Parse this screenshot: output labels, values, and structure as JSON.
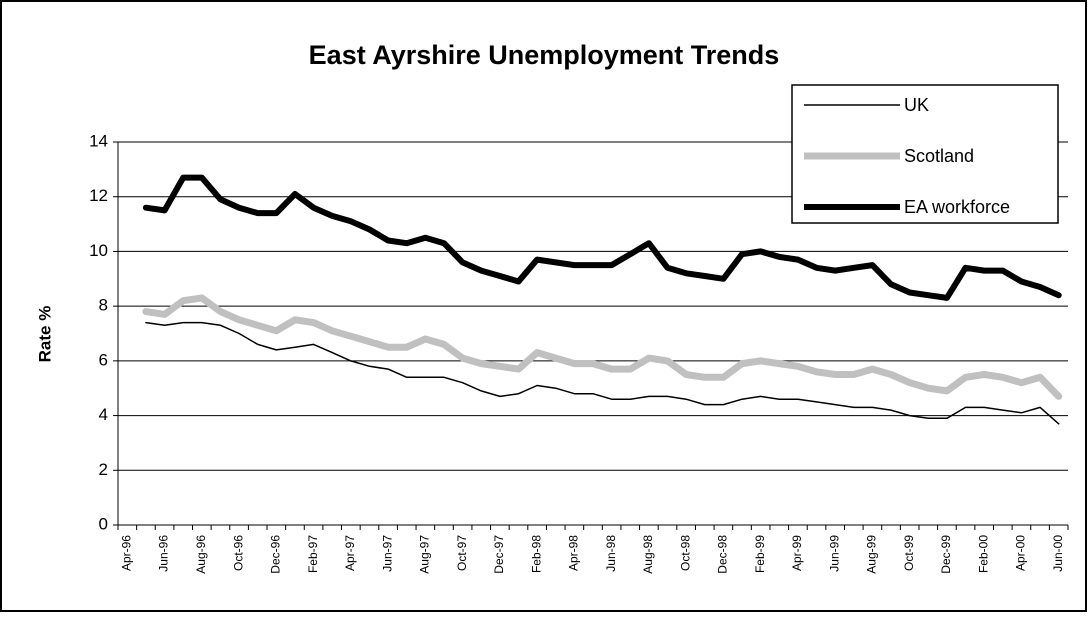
{
  "chart_data": {
    "type": "line",
    "title": "East Ayrshire Unemployment Trends",
    "y_label": "Rate %",
    "categories": [
      "Apr-96",
      null,
      "Jun-96",
      null,
      "Aug-96",
      null,
      "Oct-96",
      null,
      "Dec-96",
      null,
      "Feb-97",
      null,
      "Apr-97",
      null,
      "Jun-97",
      null,
      "Aug-97",
      null,
      "Oct-97",
      null,
      "Dec-97",
      null,
      "Feb-98",
      null,
      "Apr-98",
      null,
      "Jun-98",
      null,
      "Aug-98",
      null,
      "Oct-98",
      null,
      "Dec-98",
      null,
      "Feb-99",
      null,
      "Apr-99",
      null,
      "Jun-99",
      null,
      "Aug-99",
      null,
      "Oct-99",
      null,
      "Dec-99",
      null,
      "Feb-00",
      null,
      "Apr-00",
      null,
      "Jun-00"
    ],
    "series": [
      {
        "name": "UK",
        "color": "#000000",
        "line_width": 1.5,
        "values": [
          null,
          7.4,
          7.3,
          7.4,
          7.4,
          7.3,
          7.0,
          6.6,
          6.4,
          6.5,
          6.6,
          6.3,
          6.0,
          5.8,
          5.7,
          5.4,
          5.4,
          5.4,
          5.2,
          4.9,
          4.7,
          4.8,
          5.1,
          5.0,
          4.8,
          4.8,
          4.6,
          4.6,
          4.7,
          4.7,
          4.6,
          4.4,
          4.4,
          4.6,
          4.7,
          4.6,
          4.6,
          4.5,
          4.4,
          4.3,
          4.3,
          4.2,
          4.0,
          3.9,
          3.9,
          4.3,
          4.3,
          4.2,
          4.1,
          4.3,
          3.7
        ]
      },
      {
        "name": "Scotland",
        "color": "#c0c0c0",
        "line_width": 7,
        "values": [
          null,
          7.8,
          7.7,
          8.2,
          8.3,
          7.8,
          7.5,
          7.3,
          7.1,
          7.5,
          7.4,
          7.1,
          6.9,
          6.7,
          6.5,
          6.5,
          6.8,
          6.6,
          6.1,
          5.9,
          5.8,
          5.7,
          6.3,
          6.1,
          5.9,
          5.9,
          5.7,
          5.7,
          6.1,
          6.0,
          5.5,
          5.4,
          5.4,
          5.9,
          6.0,
          5.9,
          5.8,
          5.6,
          5.5,
          5.5,
          5.7,
          5.5,
          5.2,
          5.0,
          4.9,
          5.4,
          5.5,
          5.4,
          5.2,
          5.4,
          4.7
        ]
      },
      {
        "name": "EA workforce",
        "color": "#000000",
        "line_width": 6,
        "values": [
          null,
          11.6,
          11.5,
          12.7,
          12.7,
          11.9,
          11.6,
          11.4,
          11.4,
          12.1,
          11.6,
          11.3,
          11.1,
          10.8,
          10.4,
          10.3,
          10.5,
          10.3,
          9.6,
          9.3,
          9.1,
          8.9,
          9.7,
          9.6,
          9.5,
          9.5,
          9.5,
          9.9,
          10.3,
          9.4,
          9.2,
          9.1,
          9.0,
          9.9,
          10.0,
          9.8,
          9.7,
          9.4,
          9.3,
          9.4,
          9.5,
          8.8,
          8.5,
          8.4,
          8.3,
          9.4,
          9.3,
          9.3,
          8.9,
          8.7,
          8.4
        ]
      }
    ],
    "ylim": [
      0,
      14
    ],
    "yticks": [
      0,
      2,
      4,
      6,
      8,
      10,
      12,
      14
    ],
    "grid": true,
    "legend": "top-right"
  }
}
